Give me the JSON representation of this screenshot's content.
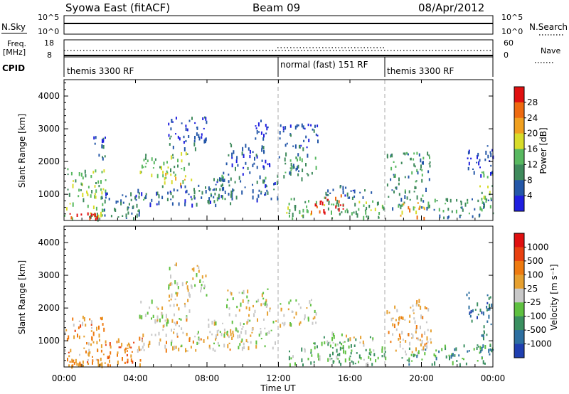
{
  "header": {
    "station": "Syowa East (fitACF)",
    "beam": "Beam 09",
    "date": "08/Apr/2012"
  },
  "status_panels": {
    "nsky_label": "N.Sky",
    "nsky_ticks": [
      "10^5",
      "10^0"
    ],
    "nsearch_label": "N.Search",
    "nsearch_ticks": [
      "10^5",
      "10^0"
    ],
    "freq_label": "Freq.",
    "freq_unit": "[MHz]",
    "freq_ticks": [
      "18",
      "8"
    ],
    "nave_label": "Nave",
    "nave_ticks": [
      "60",
      "0"
    ],
    "cpid_label": "CPID",
    "cpid_modes": [
      {
        "label": "themis 3300 RF",
        "start_hour": 0
      },
      {
        "label": "normal (fast) 151 RF",
        "start_hour": 12
      },
      {
        "label": "themis 3300 RF",
        "start_hour": 18
      }
    ]
  },
  "colors": {
    "power_scale": [
      "#1f1fe0",
      "#2457a8",
      "#3f8a5c",
      "#58b860",
      "#d8dc2a",
      "#f0a020",
      "#ee6a10",
      "#e01010"
    ],
    "velocity_scale": [
      "#1f3fb0",
      "#2d6fa0",
      "#3a8f60",
      "#5ec040",
      "#c8c8c8",
      "#e6a030",
      "#ee7a10",
      "#e84010",
      "#e01010"
    ],
    "gray_marker": "#c8c8c8"
  },
  "chart_data": [
    {
      "type": "heatmap",
      "panel": "power",
      "ylabel": "Slant Range [km]",
      "yticks": [
        "1000",
        "2000",
        "3000",
        "4000"
      ],
      "ylim": [
        200,
        4500
      ],
      "xlim_hours": [
        0,
        24
      ],
      "colorbar_label": "Power [dB]",
      "colorbar_ticks": [
        "4",
        "8",
        "12",
        "16",
        "20",
        "24",
        "28"
      ],
      "colorbar_range": [
        0,
        32
      ],
      "regions": [
        {
          "t0": 0.0,
          "t1": 2.3,
          "r0": 250,
          "r1": 1800,
          "level": 0.45
        },
        {
          "t0": 0.3,
          "t1": 1.9,
          "r0": 250,
          "r1": 450,
          "level": 0.95
        },
        {
          "t0": 1.6,
          "t1": 2.3,
          "r0": 2100,
          "r1": 2800,
          "level": 0.15
        },
        {
          "t0": 2.0,
          "t1": 4.5,
          "r0": 250,
          "r1": 1100,
          "level": 0.25
        },
        {
          "t0": 4.2,
          "t1": 7.0,
          "r0": 1600,
          "r1": 2300,
          "level": 0.4
        },
        {
          "t0": 5.5,
          "t1": 7.3,
          "r0": 1300,
          "r1": 1700,
          "level": 0.6
        },
        {
          "t0": 5.8,
          "t1": 8.0,
          "r0": 2400,
          "r1": 3400,
          "level": 0.15
        },
        {
          "t0": 4.0,
          "t1": 9.5,
          "r0": 700,
          "r1": 1300,
          "level": 0.2
        },
        {
          "t0": 8.0,
          "t1": 12.0,
          "r0": 800,
          "r1": 1700,
          "level": 0.25
        },
        {
          "t0": 9.0,
          "t1": 11.5,
          "r0": 1800,
          "r1": 2600,
          "level": 0.15
        },
        {
          "t0": 10.6,
          "t1": 11.4,
          "r0": 2700,
          "r1": 3300,
          "level": 0.12
        },
        {
          "t0": 12.0,
          "t1": 14.2,
          "r0": 1500,
          "r1": 2300,
          "level": 0.3
        },
        {
          "t0": 12.0,
          "t1": 14.2,
          "r0": 2400,
          "r1": 3200,
          "level": 0.15
        },
        {
          "t0": 12.3,
          "t1": 18.0,
          "r0": 300,
          "r1": 900,
          "level": 0.4
        },
        {
          "t0": 13.8,
          "t1": 15.6,
          "r0": 450,
          "r1": 1000,
          "level": 0.92
        },
        {
          "t0": 14.5,
          "t1": 17.5,
          "r0": 900,
          "r1": 1300,
          "level": 0.25
        },
        {
          "t0": 18.0,
          "t1": 20.5,
          "r0": 600,
          "r1": 2300,
          "level": 0.3
        },
        {
          "t0": 18.8,
          "t1": 20.2,
          "r0": 300,
          "r1": 800,
          "level": 0.7
        },
        {
          "t0": 20.5,
          "t1": 24.0,
          "r0": 300,
          "r1": 900,
          "level": 0.3
        },
        {
          "t0": 23.2,
          "t1": 24.0,
          "r0": 600,
          "r1": 1700,
          "level": 0.5
        },
        {
          "t0": 22.5,
          "t1": 24.0,
          "r0": 1600,
          "r1": 2500,
          "level": 0.1
        }
      ]
    },
    {
      "type": "heatmap",
      "panel": "velocity",
      "ylabel": "Slant Range [km]",
      "yticks": [
        "1000",
        "2000",
        "3000",
        "4000"
      ],
      "ylim": [
        200,
        4500
      ],
      "xlim_hours": [
        0,
        24
      ],
      "xticks": [
        "00:00",
        "04:00",
        "08:00",
        "12:00",
        "16:00",
        "20:00",
        "00:00"
      ],
      "xlabel": "Time UT",
      "colorbar_label": "Velocity [m s⁻¹]",
      "colorbar_ticks": [
        "1000",
        "500",
        "100",
        "25",
        "-25",
        "-100",
        "-500",
        "-1000"
      ],
      "regions": [
        {
          "t0": 0.0,
          "t1": 2.3,
          "r0": 250,
          "r1": 1800,
          "level": 0.65
        },
        {
          "t0": 0.3,
          "t1": 1.9,
          "r0": 250,
          "r1": 450,
          "level": 0.7
        },
        {
          "t0": 2.0,
          "t1": 4.5,
          "r0": 250,
          "r1": 1100,
          "level": 0.7
        },
        {
          "t0": 4.2,
          "t1": 7.0,
          "r0": 1600,
          "r1": 2300,
          "level": 0.5
        },
        {
          "t0": 5.5,
          "t1": 7.3,
          "r0": 1300,
          "r1": 1700,
          "level": 0.55
        },
        {
          "t0": 5.8,
          "t1": 8.0,
          "r0": 2400,
          "r1": 3400,
          "level": 0.5
        },
        {
          "t0": 4.0,
          "t1": 9.5,
          "r0": 700,
          "r1": 1300,
          "level": 0.55
        },
        {
          "t0": 8.0,
          "t1": 12.0,
          "r0": 800,
          "r1": 1700,
          "level": 0.5
        },
        {
          "t0": 9.0,
          "t1": 11.5,
          "r0": 1800,
          "r1": 2600,
          "level": 0.5
        },
        {
          "t0": 12.0,
          "t1": 14.2,
          "r0": 1500,
          "r1": 2300,
          "level": 0.5
        },
        {
          "t0": 12.3,
          "t1": 18.0,
          "r0": 300,
          "r1": 900,
          "level": 0.35
        },
        {
          "t0": 13.8,
          "t1": 15.6,
          "r0": 450,
          "r1": 1000,
          "level": 0.35
        },
        {
          "t0": 14.5,
          "t1": 17.5,
          "r0": 900,
          "r1": 1300,
          "level": 0.45
        },
        {
          "t0": 18.0,
          "t1": 20.5,
          "r0": 600,
          "r1": 2300,
          "level": 0.6
        },
        {
          "t0": 18.8,
          "t1": 20.2,
          "r0": 300,
          "r1": 800,
          "level": 0.3
        },
        {
          "t0": 20.5,
          "t1": 24.0,
          "r0": 300,
          "r1": 900,
          "level": 0.3
        },
        {
          "t0": 23.2,
          "t1": 24.0,
          "r0": 600,
          "r1": 1700,
          "level": 0.25
        },
        {
          "t0": 22.5,
          "t1": 24.0,
          "r0": 1600,
          "r1": 2500,
          "level": 0.2
        }
      ]
    }
  ]
}
